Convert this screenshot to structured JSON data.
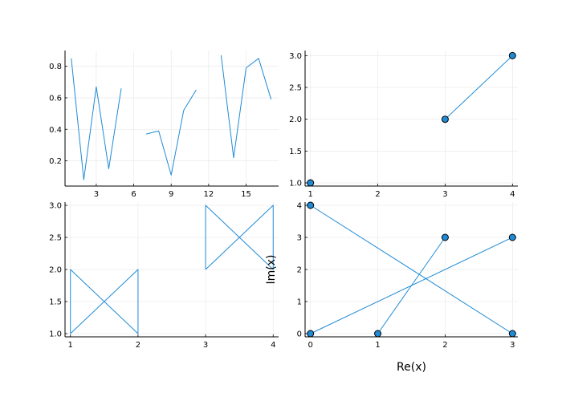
{
  "colors": {
    "series": "#1f8bd6",
    "marker_fill": "#1f8bd6",
    "grid": "#e6e6e6",
    "axis": "#000000"
  },
  "chart_data": [
    {
      "type": "line",
      "panel": "top-left",
      "title": "",
      "xlabel": "",
      "ylabel": "",
      "xlim": [
        0.5,
        17.6
      ],
      "ylim": [
        0.04,
        0.9
      ],
      "xticks": [
        3,
        6,
        9,
        12,
        15
      ],
      "xtick_labels": [
        "3",
        "6",
        "9",
        "12",
        "15"
      ],
      "yticks": [
        0.2,
        0.4,
        0.6,
        0.8
      ],
      "ytick_labels": [
        "0.2",
        "0.4",
        "0.6",
        "0.8"
      ],
      "grid": true,
      "legend": "none",
      "series": [
        {
          "x": [
            1,
            2,
            3,
            4,
            5,
            6,
            7,
            8,
            9,
            10,
            11,
            12,
            13,
            14,
            15,
            16,
            17
          ],
          "y": [
            0.85,
            0.08,
            0.67,
            0.15,
            0.66,
            null,
            0.37,
            0.39,
            0.11,
            0.52,
            0.65,
            null,
            0.87,
            0.22,
            0.79,
            0.85,
            0.59
          ],
          "markers": false
        }
      ]
    },
    {
      "type": "line",
      "panel": "top-right",
      "title": "",
      "xlabel": "",
      "ylabel": "",
      "xlim": [
        0.92,
        4.08
      ],
      "ylim": [
        0.95,
        3.08
      ],
      "xticks": [
        1,
        2,
        3,
        4
      ],
      "xtick_labels": [
        "1",
        "2",
        "3",
        "4"
      ],
      "yticks": [
        1.0,
        1.5,
        2.0,
        2.5,
        3.0
      ],
      "ytick_labels": [
        "1.0",
        "1.5",
        "2.0",
        "2.5",
        "3.0"
      ],
      "grid": true,
      "legend": "none",
      "series": [
        {
          "x": [
            1,
            null,
            3,
            4
          ],
          "y": [
            1,
            null,
            2,
            3
          ],
          "markers": true
        }
      ]
    },
    {
      "type": "line",
      "panel": "bottom-left",
      "title": "",
      "xlabel": "",
      "ylabel": "",
      "xlim": [
        0.92,
        4.08
      ],
      "ylim": [
        0.95,
        3.05
      ],
      "xticks": [
        1,
        2,
        3,
        4
      ],
      "xtick_labels": [
        "1",
        "2",
        "3",
        "4"
      ],
      "yticks": [
        1.0,
        1.5,
        2.0,
        2.5,
        3.0
      ],
      "ytick_labels": [
        "1.0",
        "1.5",
        "2.0",
        "2.5",
        "3.0"
      ],
      "grid": true,
      "legend": "none",
      "series": [
        {
          "x": [
            1,
            1,
            2,
            2,
            1
          ],
          "y": [
            1,
            2,
            1,
            2,
            1
          ],
          "markers": false
        },
        {
          "x": [
            3,
            3,
            4,
            4,
            3
          ],
          "y": [
            2,
            3,
            2,
            3,
            2
          ],
          "markers": false
        }
      ]
    },
    {
      "type": "scatter",
      "panel": "bottom-right",
      "title": "",
      "xlabel": "Re(x)",
      "ylabel": "Im(x)",
      "xlim": [
        -0.08,
        3.08
      ],
      "ylim": [
        -0.1,
        4.1
      ],
      "xticks": [
        0,
        1,
        2,
        3
      ],
      "xtick_labels": [
        "0",
        "1",
        "2",
        "3"
      ],
      "yticks": [
        0,
        1,
        2,
        3,
        4
      ],
      "ytick_labels": [
        "0",
        "1",
        "2",
        "3",
        "4"
      ],
      "grid": true,
      "legend": "none",
      "series": [
        {
          "x": [
            0,
            3
          ],
          "y": [
            4,
            0
          ],
          "markers": true
        },
        {
          "x": [
            1,
            2
          ],
          "y": [
            0,
            3
          ],
          "markers": true
        },
        {
          "x": [
            0,
            3
          ],
          "y": [
            0,
            3
          ],
          "markers": true
        }
      ]
    }
  ]
}
